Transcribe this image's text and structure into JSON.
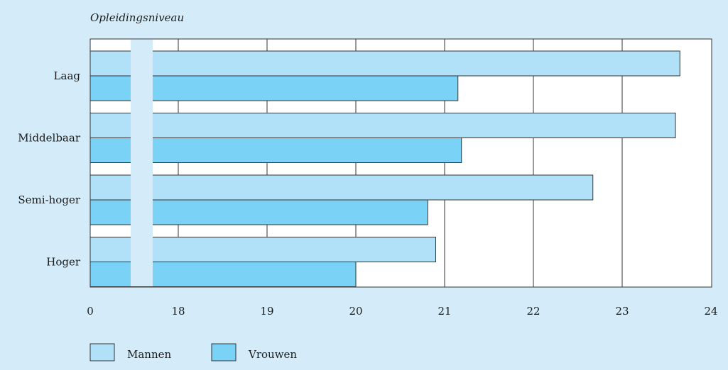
{
  "chart_data": {
    "type": "bar",
    "orientation": "horizontal",
    "title": "Opleidingsniveau",
    "categories": [
      "Laag",
      "Middelbaar",
      "Semi-hoger",
      "Hoger"
    ],
    "series": [
      {
        "name": "Mannen",
        "color": "#b1e1f9",
        "values": [
          23.65,
          23.6,
          22.67,
          20.9
        ]
      },
      {
        "name": "Vrouwen",
        "color": "#7ad3f6",
        "values": [
          21.15,
          21.19,
          20.81,
          20.0
        ]
      }
    ],
    "x_ticks": [
      0,
      18,
      19,
      20,
      21,
      22,
      23,
      24
    ],
    "xlim": [
      0,
      24
    ],
    "axis_break": "between 0 and 18",
    "grid": "vertical",
    "legend_position": "bottom-left"
  }
}
